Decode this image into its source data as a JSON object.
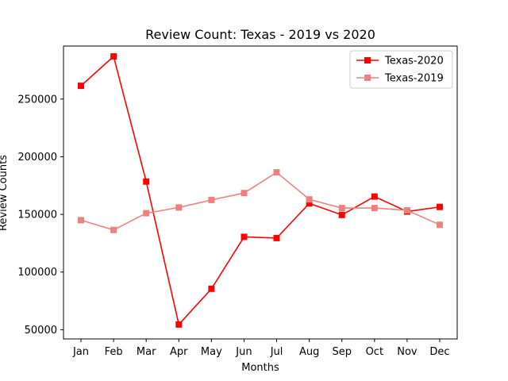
{
  "chart_data": {
    "type": "line",
    "title": "Review Count: Texas - 2019 vs 2020",
    "xlabel": "Months",
    "ylabel": "Review Counts",
    "categories": [
      "Jan",
      "Feb",
      "Mar",
      "Apr",
      "May",
      "Jun",
      "Jul",
      "Aug",
      "Sep",
      "Oct",
      "Nov",
      "Dec"
    ],
    "yticks": [
      50000,
      100000,
      150000,
      200000,
      250000
    ],
    "ylim": [
      42000,
      296000
    ],
    "grid": false,
    "legend_position": "top-right",
    "series": [
      {
        "name": "Texas-2020",
        "color": "#ff0000",
        "marker": "square",
        "values": [
          261500,
          287000,
          178500,
          54500,
          85500,
          130500,
          129500,
          159500,
          149500,
          165500,
          152500,
          156500
        ]
      },
      {
        "name": "Texas-2019",
        "color": "#f08080",
        "marker": "square",
        "values": [
          145000,
          136500,
          151000,
          156000,
          162500,
          168500,
          186500,
          163000,
          155500,
          155500,
          153500,
          141000
        ]
      }
    ]
  }
}
